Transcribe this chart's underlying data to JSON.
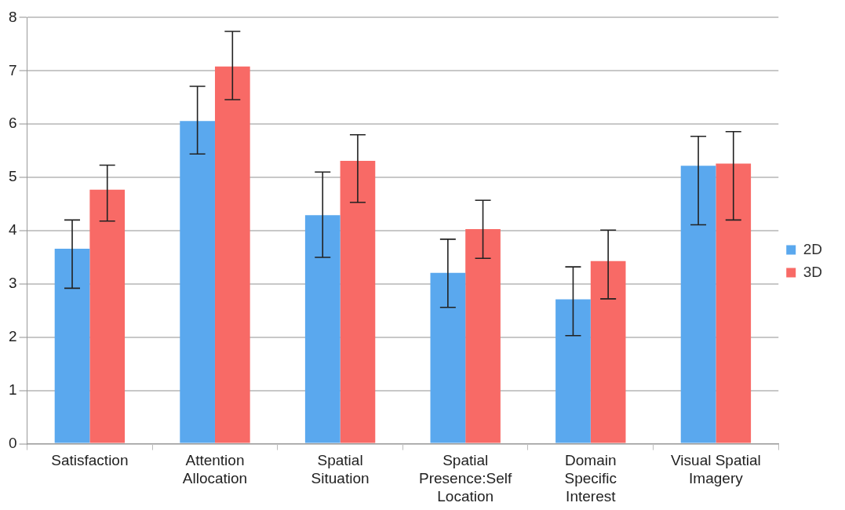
{
  "chart_data": {
    "type": "bar",
    "categories": [
      "Satisfaction",
      "Attention Allocation",
      "Spatial Situation",
      "Spatial Presence:Self Location",
      "Domain Specific Interest",
      "Visual Spatial Imagery"
    ],
    "series": [
      {
        "name": "2D",
        "color": "#5aa8ee",
        "values": [
          3.66,
          6.06,
          4.29,
          3.21,
          2.71,
          5.22
        ],
        "errors": [
          [
            2.92,
            4.2
          ],
          [
            5.44,
            6.71
          ],
          [
            3.5,
            5.1
          ],
          [
            2.56,
            3.84
          ],
          [
            2.03,
            3.32
          ],
          [
            4.11,
            5.77
          ]
        ]
      },
      {
        "name": "3D",
        "color": "#f86a66",
        "values": [
          4.77,
          7.08,
          5.31,
          4.03,
          3.43,
          5.26
        ],
        "errors": [
          [
            4.18,
            5.23
          ],
          [
            6.46,
            7.74
          ],
          [
            4.53,
            5.8
          ],
          [
            3.48,
            4.57
          ],
          [
            2.72,
            4.01
          ],
          [
            4.2,
            5.86
          ]
        ]
      }
    ],
    "ylim": [
      0,
      8
    ],
    "yticks": [
      0,
      1,
      2,
      3,
      4,
      5,
      6,
      7,
      8
    ],
    "grid": "y",
    "legend": "right"
  }
}
